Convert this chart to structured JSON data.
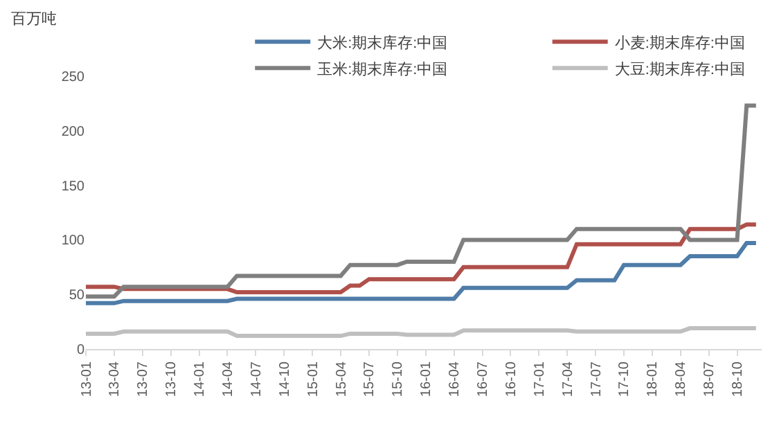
{
  "chart_data": {
    "type": "line",
    "ylabel": "百万吨",
    "legend": "top",
    "grid": false,
    "line_style": "solid",
    "marker": "none",
    "categories": [
      "13-01",
      null,
      null,
      "13-04",
      null,
      null,
      "13-07",
      null,
      null,
      "13-10",
      null,
      null,
      "14-01",
      null,
      null,
      "14-04",
      null,
      null,
      "14-07",
      null,
      null,
      "14-10",
      null,
      null,
      "15-01",
      null,
      null,
      "15-04",
      null,
      null,
      "15-07",
      null,
      null,
      "15-10",
      null,
      null,
      "16-01",
      null,
      null,
      "16-04",
      null,
      null,
      "16-07",
      null,
      null,
      "16-10",
      null,
      null,
      "17-01",
      null,
      null,
      "17-04",
      null,
      null,
      "17-07",
      null,
      null,
      "17-10",
      null,
      null,
      "18-01",
      null,
      null,
      "18-04",
      null,
      null,
      "18-07",
      null,
      null,
      "18-10",
      null,
      null
    ],
    "ylim": [
      0,
      250
    ],
    "yticks": [
      0,
      50,
      100,
      150,
      200,
      250
    ],
    "series": [
      {
        "name": "大米:期末库存:中国",
        "color": "#4f7ca8",
        "values": [
          42,
          42,
          42,
          42,
          44,
          44,
          44,
          44,
          44,
          44,
          44,
          44,
          44,
          44,
          44,
          44,
          46,
          46,
          46,
          46,
          46,
          46,
          46,
          46,
          46,
          46,
          46,
          46,
          46,
          46,
          46,
          46,
          46,
          46,
          46,
          46,
          46,
          46,
          46,
          46,
          56,
          56,
          56,
          56,
          56,
          56,
          56,
          56,
          56,
          56,
          56,
          56,
          63,
          63,
          63,
          63,
          63,
          77,
          77,
          77,
          77,
          77,
          77,
          77,
          85,
          85,
          85,
          85,
          85,
          85,
          97,
          97
        ]
      },
      {
        "name": "小麦:期末库存:中国",
        "color": "#b0504b",
        "values": [
          57,
          57,
          57,
          57,
          55,
          55,
          55,
          55,
          55,
          55,
          55,
          55,
          55,
          55,
          55,
          55,
          52,
          52,
          52,
          52,
          52,
          52,
          52,
          52,
          52,
          52,
          52,
          52,
          58,
          58,
          64,
          64,
          64,
          64,
          64,
          64,
          64,
          64,
          64,
          64,
          75,
          75,
          75,
          75,
          75,
          75,
          75,
          75,
          75,
          75,
          75,
          75,
          96,
          96,
          96,
          96,
          96,
          96,
          96,
          96,
          96,
          96,
          96,
          96,
          110,
          110,
          110,
          110,
          110,
          110,
          114,
          114
        ]
      },
      {
        "name": "玉米:期末库存:中国",
        "color": "#7f7f7f",
        "values": [
          48,
          48,
          48,
          48,
          57,
          57,
          57,
          57,
          57,
          57,
          57,
          57,
          57,
          57,
          57,
          57,
          67,
          67,
          67,
          67,
          67,
          67,
          67,
          67,
          67,
          67,
          67,
          67,
          77,
          77,
          77,
          77,
          77,
          77,
          80,
          80,
          80,
          80,
          80,
          80,
          100,
          100,
          100,
          100,
          100,
          100,
          100,
          100,
          100,
          100,
          100,
          100,
          110,
          110,
          110,
          110,
          110,
          110,
          110,
          110,
          110,
          110,
          110,
          110,
          100,
          100,
          100,
          100,
          100,
          100,
          223,
          223
        ]
      },
      {
        "name": "大豆:期末库存:中国",
        "color": "#bfbfbf",
        "values": [
          14,
          14,
          14,
          14,
          16,
          16,
          16,
          16,
          16,
          16,
          16,
          16,
          16,
          16,
          16,
          16,
          12,
          12,
          12,
          12,
          12,
          12,
          12,
          12,
          12,
          12,
          12,
          12,
          14,
          14,
          14,
          14,
          14,
          14,
          13,
          13,
          13,
          13,
          13,
          13,
          17,
          17,
          17,
          17,
          17,
          17,
          17,
          17,
          17,
          17,
          17,
          17,
          16,
          16,
          16,
          16,
          16,
          16,
          16,
          16,
          16,
          16,
          16,
          16,
          19,
          19,
          19,
          19,
          19,
          19,
          19,
          19
        ]
      }
    ]
  }
}
